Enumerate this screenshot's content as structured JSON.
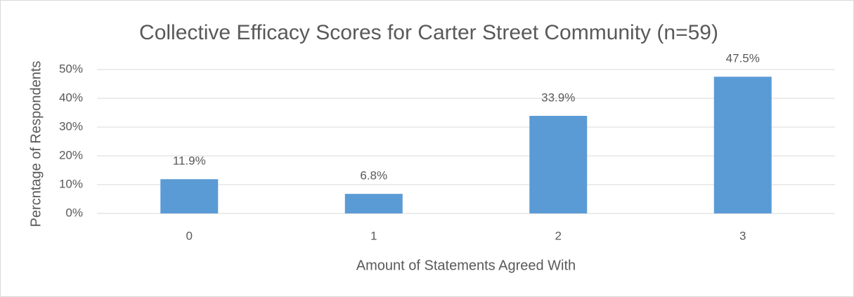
{
  "chart_data": {
    "type": "bar",
    "title": "Collective Efficacy Scores for Carter Street Community (n=59)",
    "x_label": "Amount of Statements Agreed With",
    "y_label": "Percntage of Respondents",
    "categories": [
      "0",
      "1",
      "2",
      "3"
    ],
    "values": [
      11.9,
      6.8,
      33.9,
      47.5
    ],
    "value_labels": [
      "11.9%",
      "6.8%",
      "33.9%",
      "47.5%"
    ],
    "color": "#5b9bd5",
    "ylim": [
      0,
      50
    ],
    "yticks": [
      {
        "value": 0,
        "label": "0%"
      },
      {
        "value": 10,
        "label": "10%"
      },
      {
        "value": 20,
        "label": "20%"
      },
      {
        "value": 30,
        "label": "30%"
      },
      {
        "value": 40,
        "label": "40%"
      },
      {
        "value": 50,
        "label": "50%"
      }
    ],
    "grid": true
  }
}
